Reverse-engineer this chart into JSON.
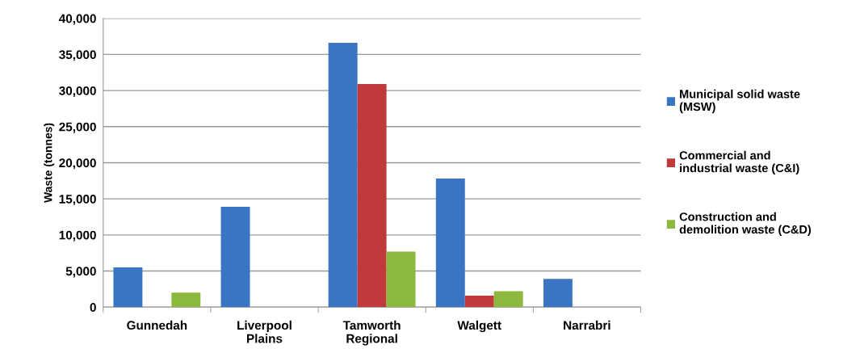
{
  "chart_data": {
    "type": "bar",
    "ylabel": "Waste (tonnes)",
    "categories": [
      "Gunnedah",
      "Liverpool\nPlains",
      "Tamworth\nRegional",
      "Walgett",
      "Narrabri"
    ],
    "series": [
      {
        "name": "Municipal solid waste\n(MSW)",
        "color": "#3a75c4",
        "values": [
          5500,
          13900,
          36600,
          17800,
          3900
        ]
      },
      {
        "name": "Commercial and\nindustrial waste (C&I)",
        "color": "#c0393b",
        "values": [
          0,
          0,
          30900,
          1600,
          0
        ]
      },
      {
        "name": "Construction and\ndemolition waste (C&D)",
        "color": "#8db83e",
        "values": [
          2000,
          0,
          7700,
          2200,
          0
        ]
      }
    ],
    "ylim": [
      0,
      40000
    ],
    "yticks": [
      {
        "value": 0,
        "label": "0"
      },
      {
        "value": 5000,
        "label": "5,000"
      },
      {
        "value": 10000,
        "label": "10,000"
      },
      {
        "value": 15000,
        "label": "15,000"
      },
      {
        "value": 20000,
        "label": "20,000"
      },
      {
        "value": 25000,
        "label": "25,000"
      },
      {
        "value": 30000,
        "label": "30,000"
      },
      {
        "value": 35000,
        "label": "35,000"
      },
      {
        "value": 40000,
        "label": "40,000"
      }
    ],
    "grid": "y",
    "legend": "right"
  }
}
